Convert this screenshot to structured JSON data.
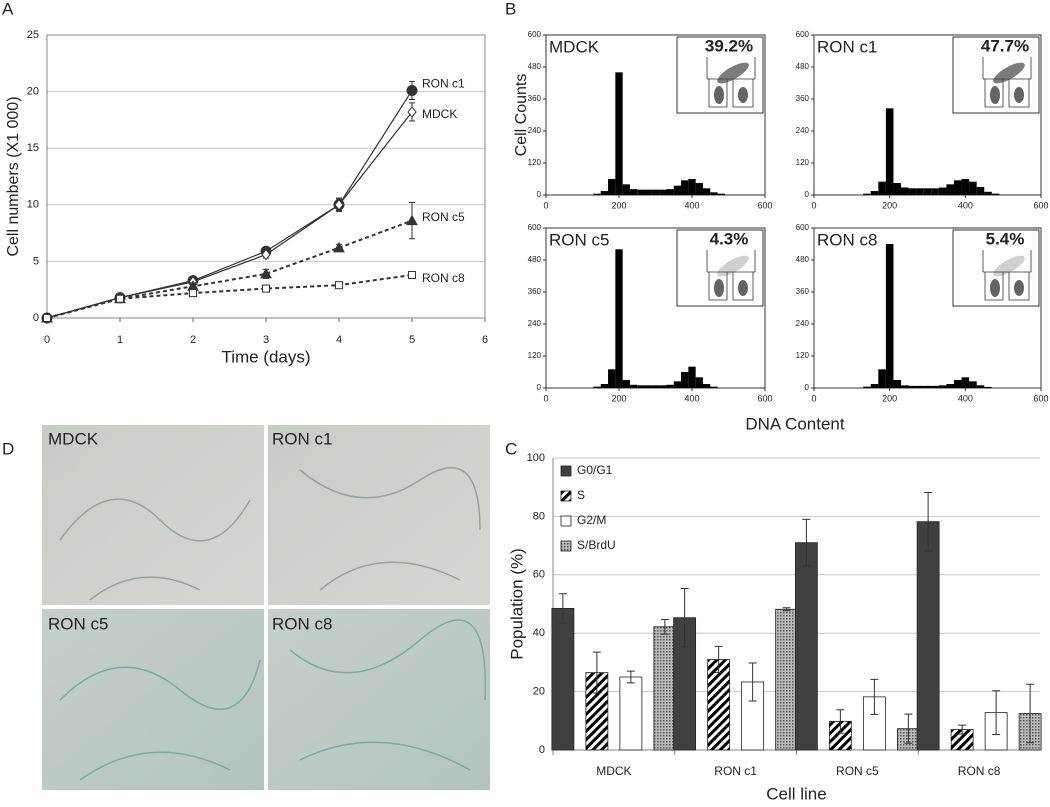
{
  "panel_labels": [
    "A",
    "B",
    "C",
    "D"
  ],
  "histogram_axis_labels": {
    "y": "Cell Counts",
    "x": "DNA Content"
  },
  "images": {
    "labels": [
      "MDCK",
      "RON c1",
      "RON c5",
      "RON c8"
    ]
  },
  "chart_data": [
    {
      "type": "line",
      "xlabel": "Time (days)",
      "ylabel": "Cell numbers (X1 000)",
      "x": [
        0,
        1,
        2,
        3,
        4,
        5
      ],
      "xlim": [
        0,
        6
      ],
      "xticks": [
        0,
        1,
        2,
        3,
        4,
        5,
        6
      ],
      "ylim": [
        0,
        25
      ],
      "yticks": [
        0,
        5,
        10,
        15,
        20,
        25
      ],
      "grid": true,
      "series": [
        {
          "name": "RON c1",
          "color": "#333333",
          "line_style": "solid",
          "marker": "circle",
          "values": [
            0,
            1.8,
            3.3,
            5.9,
            10,
            20.1
          ],
          "errors": [
            0,
            0.2,
            0.3,
            0.3,
            0.6,
            0.8
          ]
        },
        {
          "name": "MDCK",
          "color": "#333333",
          "line_style": "solid",
          "marker": "diamond",
          "values": [
            0,
            1.8,
            3.2,
            5.6,
            10,
            18.2
          ],
          "errors": [
            0,
            0.2,
            0.3,
            0.3,
            0.5,
            0.8
          ]
        },
        {
          "name": "RON c5",
          "color": "#333333",
          "line_style": "dashed",
          "marker": "triangle",
          "values": [
            0,
            1.7,
            2.8,
            3.9,
            6.2,
            8.6
          ],
          "errors": [
            0,
            0.2,
            0.3,
            0.4,
            0.3,
            1.6
          ]
        },
        {
          "name": "RON c8",
          "color": "#333333",
          "line_style": "dashed",
          "marker": "square",
          "values": [
            0,
            1.7,
            2.2,
            2.6,
            2.9,
            3.8
          ],
          "errors": [
            0,
            0.1,
            0.2,
            0.3,
            0.2,
            0.3
          ]
        }
      ]
    },
    {
      "type": "histogram",
      "title": "MDCK",
      "annotation": "39.2%",
      "color": "#000000",
      "bins": [
        10,
        30,
        50,
        70,
        90,
        110,
        130,
        150,
        170,
        190,
        210,
        230,
        250,
        270,
        290,
        310,
        330,
        350,
        370,
        390,
        410,
        430,
        450,
        470,
        490,
        510,
        530,
        550,
        570,
        590
      ],
      "counts": [
        0,
        0,
        0,
        0,
        0,
        0,
        5,
        15,
        60,
        460,
        40,
        22,
        20,
        20,
        20,
        20,
        22,
        35,
        55,
        60,
        45,
        25,
        10,
        5,
        0,
        0,
        0,
        0,
        0
      ],
      "xlim": [
        0,
        600
      ],
      "xticks": [
        0,
        200,
        400,
        600
      ],
      "ylim": [
        0,
        600
      ],
      "yticks": [
        0,
        120,
        240,
        360,
        480,
        600
      ]
    },
    {
      "type": "histogram",
      "title": "RON c1",
      "annotation": "47.7%",
      "color": "#000000",
      "bins": [
        10,
        30,
        50,
        70,
        90,
        110,
        130,
        150,
        170,
        190,
        210,
        230,
        250,
        270,
        290,
        310,
        330,
        350,
        370,
        390,
        410,
        430,
        450,
        470,
        490,
        510,
        530,
        550,
        570,
        590
      ],
      "counts": [
        0,
        0,
        0,
        0,
        0,
        0,
        5,
        15,
        50,
        325,
        45,
        28,
        25,
        25,
        25,
        25,
        28,
        40,
        55,
        60,
        50,
        30,
        12,
        5,
        0,
        0,
        0,
        0,
        0
      ],
      "xlim": [
        0,
        600
      ],
      "xticks": [
        0,
        200,
        400,
        600
      ],
      "ylim": [
        0,
        600
      ],
      "yticks": [
        0,
        120,
        240,
        360,
        480,
        600
      ]
    },
    {
      "type": "histogram",
      "title": "RON c5",
      "annotation": "4.3%",
      "color": "#000000",
      "bins": [
        10,
        30,
        50,
        70,
        90,
        110,
        130,
        150,
        170,
        190,
        210,
        230,
        250,
        270,
        290,
        310,
        330,
        350,
        370,
        390,
        410,
        430,
        450,
        470,
        490,
        510,
        530,
        550,
        570,
        590
      ],
      "counts": [
        0,
        0,
        0,
        0,
        0,
        0,
        5,
        15,
        70,
        520,
        30,
        12,
        10,
        10,
        10,
        10,
        12,
        25,
        60,
        80,
        40,
        15,
        5,
        0,
        0,
        0,
        0,
        0,
        0
      ],
      "xlim": [
        0,
        600
      ],
      "xticks": [
        0,
        200,
        400,
        600
      ],
      "ylim": [
        0,
        600
      ],
      "yticks": [
        0,
        120,
        240,
        360,
        480,
        600
      ]
    },
    {
      "type": "histogram",
      "title": "RON c8",
      "annotation": "5.4%",
      "color": "#000000",
      "bins": [
        10,
        30,
        50,
        70,
        90,
        110,
        130,
        150,
        170,
        190,
        210,
        230,
        250,
        270,
        290,
        310,
        330,
        350,
        370,
        390,
        410,
        430,
        450,
        470,
        490,
        510,
        530,
        550,
        570,
        590
      ],
      "counts": [
        0,
        0,
        0,
        0,
        0,
        0,
        5,
        15,
        70,
        540,
        30,
        10,
        8,
        8,
        8,
        8,
        10,
        15,
        30,
        40,
        25,
        10,
        4,
        0,
        0,
        0,
        0,
        0,
        0
      ],
      "xlim": [
        0,
        600
      ],
      "xticks": [
        0,
        200,
        400,
        600
      ],
      "ylim": [
        0,
        600
      ],
      "yticks": [
        0,
        120,
        240,
        360,
        480,
        600
      ]
    },
    {
      "type": "bar",
      "xlabel": "Cell line",
      "ylabel": "Population (%)",
      "legend": "top-left",
      "grid": true,
      "categories": [
        "MDCK",
        "RON c1",
        "RON c5",
        "RON c8"
      ],
      "ylim": [
        0,
        100
      ],
      "yticks": [
        0,
        20,
        40,
        60,
        80,
        100
      ],
      "series": [
        {
          "name": "G0/G1",
          "color": "#404040",
          "fill": "solid",
          "values": [
            48.5,
            45.3,
            71,
            78.2
          ],
          "errors": [
            5,
            10,
            8,
            10
          ]
        },
        {
          "name": "S",
          "color": "#000000",
          "fill": "diagonal",
          "values": [
            26.5,
            31,
            9.8,
            7
          ],
          "errors": [
            7,
            4.5,
            4,
            1.5
          ]
        },
        {
          "name": "G2/M",
          "color": "#ffffff",
          "fill": "solid",
          "values": [
            25,
            23.3,
            18.2,
            12.8
          ],
          "errors": [
            2,
            6.5,
            6,
            7.5
          ]
        },
        {
          "name": "S/BrdU",
          "color": "#808080",
          "fill": "crosshatch",
          "values": [
            42.2,
            48.2,
            7.3,
            12.5
          ],
          "errors": [
            2.5,
            0.5,
            5,
            10
          ]
        }
      ]
    }
  ]
}
